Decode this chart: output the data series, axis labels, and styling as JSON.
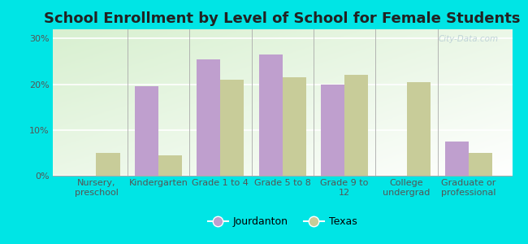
{
  "title": "School Enrollment by Level of School for Female Students",
  "categories": [
    "Nursery,\npreschool",
    "Kindergarten",
    "Grade 1 to 4",
    "Grade 5 to 8",
    "Grade 9 to\n12",
    "College\nundergrad",
    "Graduate or\nprofessional"
  ],
  "jourdanton": [
    0,
    19.5,
    25.5,
    26.5,
    20.0,
    0,
    7.5
  ],
  "texas": [
    5.0,
    4.5,
    21.0,
    21.5,
    22.0,
    20.5,
    5.0
  ],
  "jourdanton_color": "#bf9fce",
  "texas_color": "#c8cc99",
  "background_color": "#00e5e5",
  "plot_bg_top_left": "#d8f0d0",
  "plot_bg_bottom_right": "#ffffff",
  "ylim": [
    0,
    32
  ],
  "yticks": [
    0,
    10,
    20,
    30
  ],
  "ytick_labels": [
    "0%",
    "10%",
    "20%",
    "30%"
  ],
  "bar_width": 0.38,
  "legend_labels": [
    "Jourdanton",
    "Texas"
  ],
  "watermark": "City-Data.com",
  "title_fontsize": 13,
  "tick_fontsize": 8,
  "xlabel_fontsize": 8
}
